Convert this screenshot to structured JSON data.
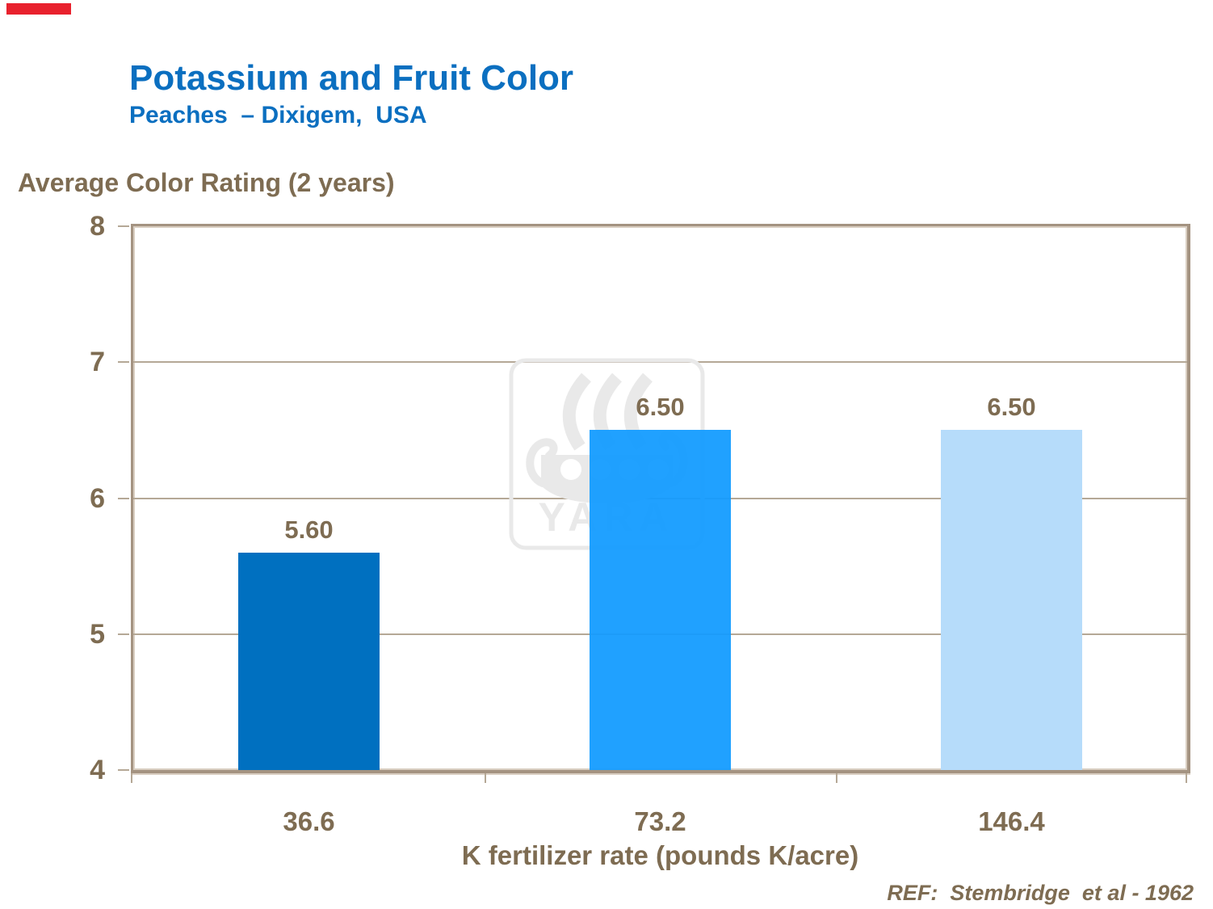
{
  "slide": {
    "title": "Potassium and Fruit Color",
    "subtitle": "Peaches  – Dixigem,  USA",
    "reference": "REF:  Stembridge  et al - 1962",
    "watermark_text": "YARA"
  },
  "chart_data": {
    "type": "bar",
    "title": "Average Color Rating (2 years)",
    "ylabel": "Average Color Rating (2 years)",
    "xlabel": "K fertilizer rate (pounds K/acre)",
    "categories": [
      "36.6",
      "73.2",
      "146.4"
    ],
    "values": [
      5.6,
      6.5,
      6.5
    ],
    "value_labels": [
      "5.60",
      "6.50",
      "6.50"
    ],
    "ylim": [
      4,
      8
    ],
    "yticks": [
      8,
      7,
      6,
      5,
      4
    ],
    "grid": true,
    "legend": "none",
    "bar_colors": [
      "#0070C0",
      "#129BFF",
      "#B6DCFA"
    ]
  },
  "colors": {
    "title_blue": "#0B6FC0",
    "text_brown": "#7E6C52",
    "frame": "#A49381",
    "frame_highlight": "#D9CEC1",
    "gridline": "#B5A896",
    "top_marker_red": "#E8212D",
    "watermark_gray": "#E9E9E9"
  }
}
